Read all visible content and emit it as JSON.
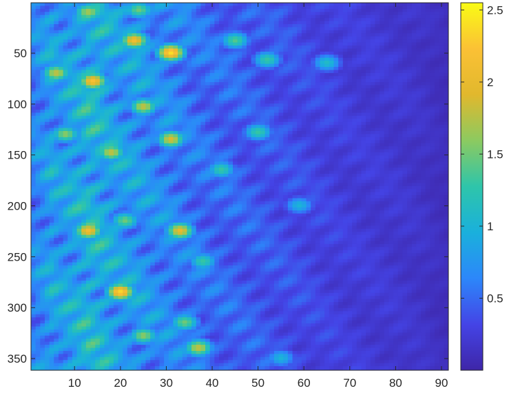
{
  "chart_data": {
    "type": "heatmap",
    "title": "",
    "xlabel": "",
    "ylabel": "",
    "colormap": "parula",
    "colormap_stops": [
      "#3e26a8",
      "#4444e6",
      "#2c87fa",
      "#1ab0dc",
      "#2ec5aa",
      "#8cca60",
      "#e1b82d",
      "#fbc135",
      "#f9fb15"
    ],
    "xlim": [
      0.5,
      91.5
    ],
    "ylim": [
      0.5,
      361.5
    ],
    "y_reversed": true,
    "clim": [
      0,
      2.55
    ],
    "x_ticks": [
      10,
      20,
      30,
      40,
      50,
      60,
      70,
      80,
      90
    ],
    "x_tick_labels": [
      "10",
      "20",
      "30",
      "40",
      "50",
      "60",
      "70",
      "80",
      "90"
    ],
    "y_ticks": [
      50,
      100,
      150,
      200,
      250,
      300,
      350
    ],
    "y_tick_labels": [
      "50",
      "100",
      "150",
      "200",
      "250",
      "300",
      "350"
    ],
    "colorbar_ticks": [
      0.5,
      1,
      1.5,
      2,
      2.5
    ],
    "colorbar_tick_labels": [
      "0.5",
      "1",
      "1.5",
      "2",
      "2.5"
    ],
    "grid": false,
    "columns": 91,
    "rows": 361,
    "column_envelope": {
      "x": [
        1,
        3,
        5,
        7,
        10,
        13,
        16,
        20,
        24,
        28,
        32,
        36,
        40,
        45,
        50,
        55,
        60,
        65,
        70,
        75,
        80,
        85,
        91
      ],
      "mean_value": [
        0.75,
        0.85,
        1.0,
        0.95,
        1.05,
        1.2,
        1.1,
        0.95,
        0.9,
        0.8,
        0.75,
        0.65,
        0.6,
        0.55,
        0.5,
        0.45,
        0.4,
        0.35,
        0.3,
        0.27,
        0.24,
        0.2,
        0.12
      ]
    },
    "bright_spots": [
      {
        "x": 6,
        "y": 70,
        "value": 1.8
      },
      {
        "x": 13,
        "y": 10,
        "value": 1.7
      },
      {
        "x": 14,
        "y": 78,
        "value": 2.2
      },
      {
        "x": 8,
        "y": 130,
        "value": 1.6
      },
      {
        "x": 18,
        "y": 148,
        "value": 1.8
      },
      {
        "x": 23,
        "y": 38,
        "value": 2.1
      },
      {
        "x": 24,
        "y": 8,
        "value": 1.5
      },
      {
        "x": 31,
        "y": 50,
        "value": 2.4
      },
      {
        "x": 25,
        "y": 103,
        "value": 1.8
      },
      {
        "x": 31,
        "y": 135,
        "value": 1.9
      },
      {
        "x": 13,
        "y": 225,
        "value": 2.1
      },
      {
        "x": 20,
        "y": 285,
        "value": 2.35
      },
      {
        "x": 33,
        "y": 225,
        "value": 2.0
      },
      {
        "x": 21,
        "y": 215,
        "value": 1.5
      },
      {
        "x": 37,
        "y": 340,
        "value": 1.8
      },
      {
        "x": 25,
        "y": 328,
        "value": 1.6
      },
      {
        "x": 34,
        "y": 315,
        "value": 1.5
      },
      {
        "x": 45,
        "y": 38,
        "value": 1.4
      },
      {
        "x": 52,
        "y": 57,
        "value": 1.3
      },
      {
        "x": 65,
        "y": 60,
        "value": 1.1
      },
      {
        "x": 42,
        "y": 165,
        "value": 1.3
      },
      {
        "x": 50,
        "y": 128,
        "value": 1.3
      },
      {
        "x": 38,
        "y": 255,
        "value": 1.3
      },
      {
        "x": 59,
        "y": 200,
        "value": 1.0
      },
      {
        "x": 55,
        "y": 350,
        "value": 1.0
      }
    ]
  }
}
